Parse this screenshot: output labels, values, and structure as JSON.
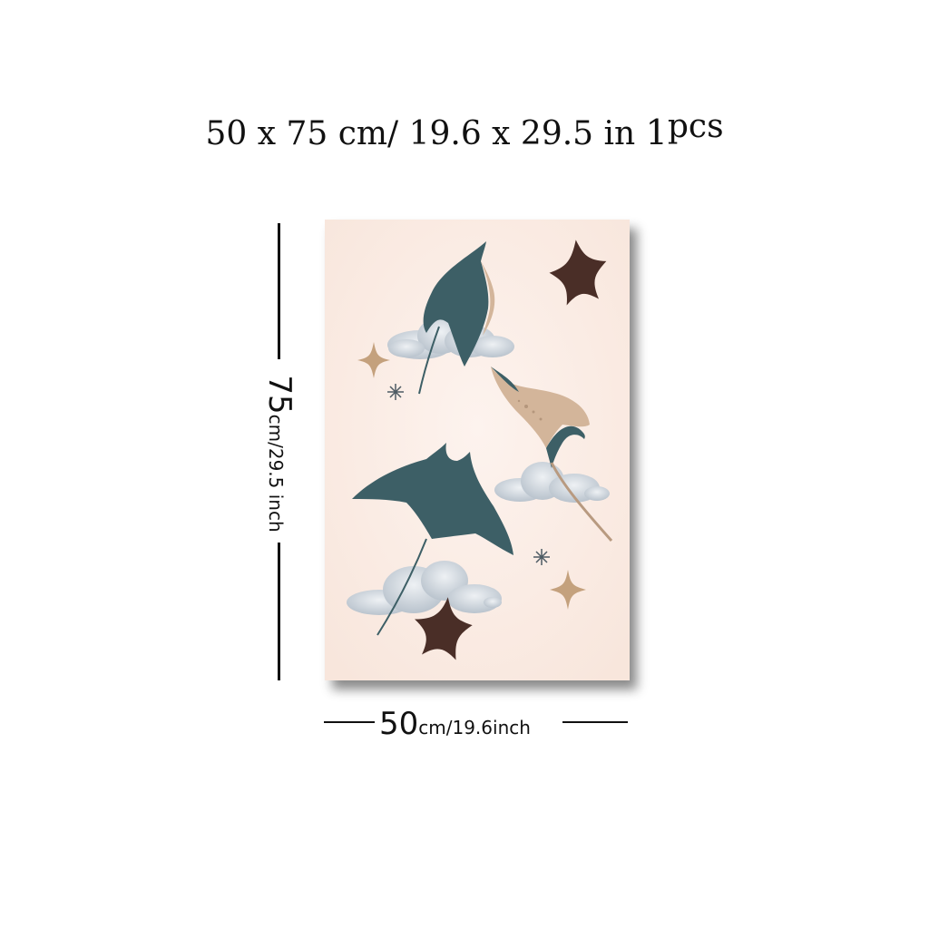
{
  "title": {
    "main": "50 x 75 cm/ 19.6  x  29.5 in ",
    "count_number": "1",
    "count_unit": "pcs"
  },
  "dimensions": {
    "height_value": "75",
    "height_unit": "cm/29.5 inch",
    "width_value": "50",
    "width_unit": "cm/19.6inch"
  },
  "colors": {
    "background": "#fbede6",
    "manta_teal": "#3d5f66",
    "manta_tan": "#d3b59a",
    "starfish": "#4a2e27",
    "cloud": "#c9d0d8",
    "sparkle_tan": "#c4a17d",
    "sparkle_dark": "#4c5a63"
  },
  "artwork": {
    "elements": [
      "manta-ray-teal-top",
      "manta-ray-tan-right",
      "manta-ray-teal-bottom",
      "starfish-top",
      "starfish-bottom",
      "clouds",
      "sparkles"
    ]
  }
}
